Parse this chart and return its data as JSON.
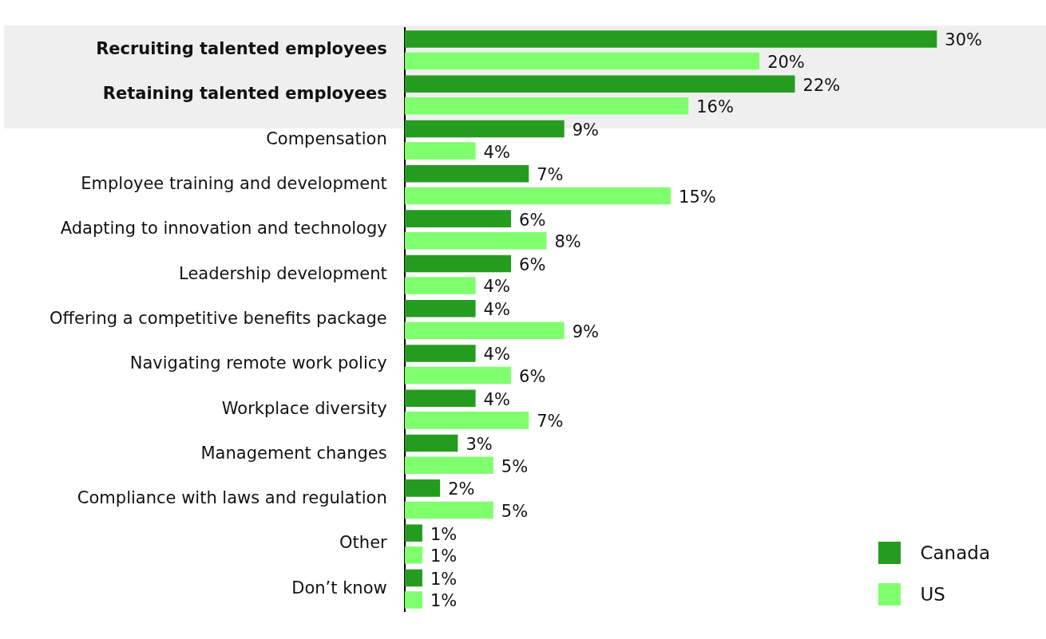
{
  "chart_data": {
    "type": "bar",
    "orientation": "horizontal",
    "categories": [
      "Recruiting talented employees",
      "Retaining talented employees",
      "Compensation",
      "Employee training and development",
      "Adapting to innovation and technology",
      "Leadership development",
      "Offering a competitive benefits package",
      "Navigating remote work policy",
      "Workplace diversity",
      "Management changes",
      "Compliance with laws and regulation",
      "Other",
      "Don’t know"
    ],
    "series": [
      {
        "name": "Canada",
        "color": "#259c1f",
        "values": [
          30,
          22,
          9,
          7,
          6,
          6,
          4,
          4,
          4,
          3,
          2,
          1,
          1
        ],
        "value_labels": [
          "30%",
          "22%",
          "9%",
          "7%",
          "6%",
          "6%",
          "4%",
          "4%",
          "4%",
          "3%",
          "2%",
          "1%",
          "1%"
        ]
      },
      {
        "name": "US",
        "color": "#80ff6e",
        "values": [
          20,
          16,
          4,
          15,
          8,
          4,
          9,
          6,
          7,
          5,
          5,
          1,
          1
        ],
        "value_labels": [
          "20%",
          "16%",
          "4%",
          "15%",
          "8%",
          "4%",
          "9%",
          "6%",
          "7%",
          "5%",
          "5%",
          "1%",
          "1%"
        ]
      }
    ],
    "grid": false,
    "legend": "bottom right",
    "tick_labels": "y"
  }
}
